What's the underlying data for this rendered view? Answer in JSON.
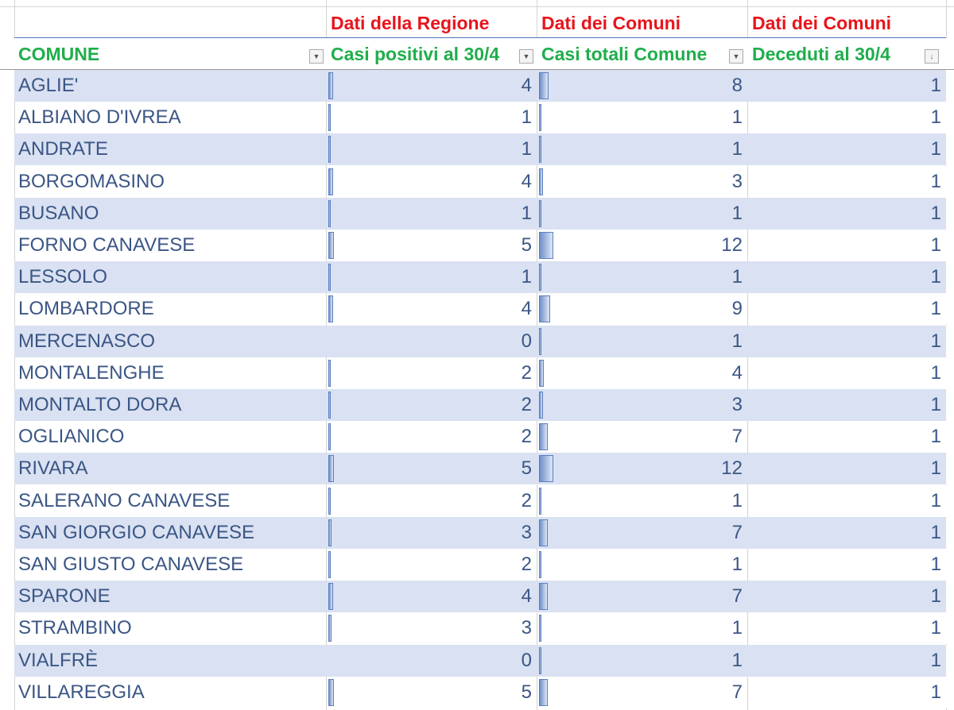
{
  "header_row1": {
    "b": "Dati della Regione",
    "c": "Dati dei Comuni",
    "d": "Dati dei Comuni"
  },
  "header_row2": {
    "a": "COMUNE",
    "b": "Casi positivi al 30/4",
    "c": "Casi totali Comune",
    "d": "Deceduti al 30/4"
  },
  "colors": {
    "header_red": "#e8141c",
    "header_green": "#1fae4b",
    "band": "#d9e1f2",
    "text": "#3b5685",
    "databar": "#6e8fc9"
  },
  "rows": [
    {
      "comune": "AGLIE'",
      "positivi": 4,
      "totali": 8,
      "deceduti": 1
    },
    {
      "comune": "ALBIANO D'IVREA",
      "positivi": 1,
      "totali": 1,
      "deceduti": 1
    },
    {
      "comune": "ANDRATE",
      "positivi": 1,
      "totali": 1,
      "deceduti": 1
    },
    {
      "comune": "BORGOMASINO",
      "positivi": 4,
      "totali": 3,
      "deceduti": 1
    },
    {
      "comune": "BUSANO",
      "positivi": 1,
      "totali": 1,
      "deceduti": 1
    },
    {
      "comune": "FORNO CANAVESE",
      "positivi": 5,
      "totali": 12,
      "deceduti": 1
    },
    {
      "comune": "LESSOLO",
      "positivi": 1,
      "totali": 1,
      "deceduti": 1
    },
    {
      "comune": "LOMBARDORE",
      "positivi": 4,
      "totali": 9,
      "deceduti": 1
    },
    {
      "comune": "MERCENASCO",
      "positivi": 0,
      "totali": 1,
      "deceduti": 1
    },
    {
      "comune": "MONTALENGHE",
      "positivi": 2,
      "totali": 4,
      "deceduti": 1
    },
    {
      "comune": "MONTALTO DORA",
      "positivi": 2,
      "totali": 3,
      "deceduti": 1
    },
    {
      "comune": "OGLIANICO",
      "positivi": 2,
      "totali": 7,
      "deceduti": 1
    },
    {
      "comune": "RIVARA",
      "positivi": 5,
      "totali": 12,
      "deceduti": 1
    },
    {
      "comune": "SALERANO CANAVESE",
      "positivi": 2,
      "totali": 1,
      "deceduti": 1
    },
    {
      "comune": "SAN GIORGIO CANAVESE",
      "positivi": 3,
      "totali": 7,
      "deceduti": 1
    },
    {
      "comune": "SAN GIUSTO CANAVESE",
      "positivi": 2,
      "totali": 1,
      "deceduti": 1
    },
    {
      "comune": "SPARONE",
      "positivi": 4,
      "totali": 7,
      "deceduti": 1
    },
    {
      "comune": "STRAMBINO",
      "positivi": 3,
      "totali": 1,
      "deceduti": 1
    },
    {
      "comune": "VIALFRÈ",
      "positivi": 0,
      "totali": 1,
      "deceduti": 1
    },
    {
      "comune": "VILLAREGGIA",
      "positivi": 5,
      "totali": 7,
      "deceduti": 1
    }
  ]
}
